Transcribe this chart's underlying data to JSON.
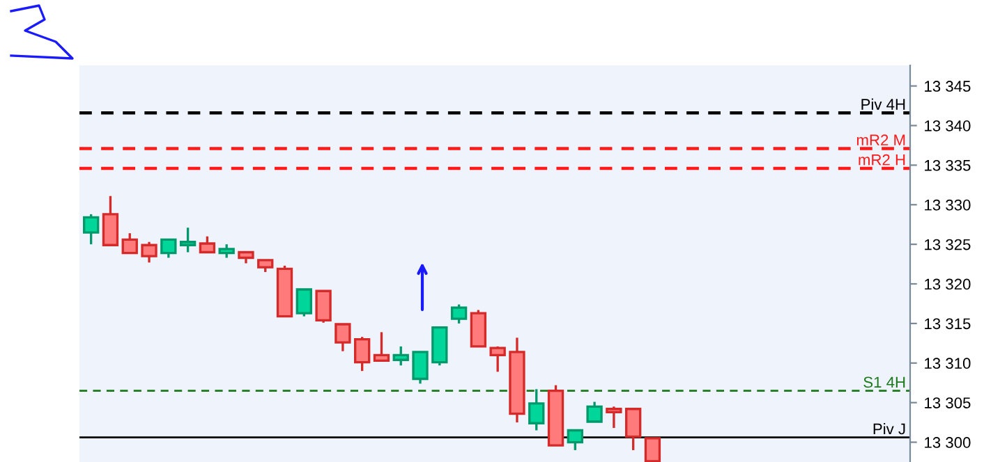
{
  "chart_data": {
    "type": "candlestick",
    "categories": [
      null,
      null,
      null,
      null,
      null,
      null,
      null,
      null,
      null,
      null,
      null,
      null,
      null,
      null,
      null,
      null,
      null,
      null,
      null,
      null,
      null,
      null,
      null,
      null,
      null,
      null,
      null,
      null,
      null,
      null,
      null,
      null,
      null,
      null,
      null,
      null,
      null,
      null,
      null,
      null,
      null,
      null,
      null
    ],
    "ohlc": [
      [
        13326.5,
        13328.8,
        13325.0,
        13328.4
      ],
      [
        13328.8,
        13331.1,
        13324.9,
        13324.9
      ],
      [
        13325.6,
        13326.4,
        13323.9,
        13323.9
      ],
      [
        13324.9,
        13325.3,
        13322.7,
        13323.5
      ],
      [
        13323.9,
        13325.6,
        13323.3,
        13325.6
      ],
      [
        13324.9,
        13327.1,
        13324.0,
        13325.3
      ],
      [
        13325.1,
        13326.0,
        13324.0,
        13324.0
      ],
      [
        13323.9,
        13325.0,
        13323.3,
        13324.4
      ],
      [
        13324.0,
        13324.0,
        13322.6,
        13323.3
      ],
      [
        13323.0,
        13323.0,
        13321.5,
        13322.1
      ],
      [
        13321.9,
        13322.3,
        13315.9,
        13315.9
      ],
      [
        13316.3,
        13319.3,
        13315.9,
        13319.3
      ],
      [
        13319.1,
        13319.1,
        13315.1,
        13315.4
      ],
      [
        13314.9,
        13314.9,
        13311.5,
        13312.6
      ],
      [
        13313.0,
        13313.3,
        13309.0,
        13310.1
      ],
      [
        13311.0,
        13313.9,
        13310.3,
        13310.3
      ],
      [
        13310.4,
        13312.1,
        13309.7,
        13311.0
      ],
      [
        13308.0,
        13311.4,
        13307.4,
        13311.4
      ],
      [
        13310.1,
        13314.5,
        13309.7,
        13314.5
      ],
      [
        13315.6,
        13317.4,
        13315.0,
        13317.0
      ],
      [
        13316.3,
        13316.7,
        13312.1,
        13312.1
      ],
      [
        13311.9,
        13312.1,
        13308.9,
        13311.0
      ],
      [
        13311.4,
        13313.2,
        13302.5,
        13303.6
      ],
      [
        13302.4,
        13306.7,
        13301.5,
        13304.9
      ],
      [
        13306.5,
        13307.2,
        13299.6,
        13299.6
      ],
      [
        13300.0,
        13301.5,
        13299.0,
        13301.5
      ],
      [
        13302.6,
        13305.1,
        13302.6,
        13304.5
      ],
      [
        13304.2,
        13304.5,
        13301.8,
        13303.8
      ],
      [
        13304.2,
        13304.2,
        13299.0,
        13300.7
      ],
      [
        13300.5,
        13300.5,
        13297.6,
        13297.6
      ],
      null,
      null,
      null,
      null,
      null,
      null,
      null,
      null,
      null,
      null,
      null,
      null,
      null
    ],
    "colors": [
      "#00d69a",
      "#ff7a7a",
      "#ff7a7a",
      "#ff7a7a",
      "#00d69a",
      "#00d69a",
      "#ff7a7a",
      "#00d69a",
      "#ff7a7a",
      "#ff7a7a",
      "#ff7a7a",
      "#00d69a",
      "#ff7a7a",
      "#ff7a7a",
      "#ff7a7a",
      "#ff7a7a",
      "#00d69a",
      "#00d69a",
      "#00d69a",
      "#00d69a",
      "#ff7a7a",
      "#ff7a7a",
      "#ff7a7a",
      "#00d69a",
      "#ff7a7a",
      "#00d69a",
      "#00d69a",
      "#ff7a7a",
      "#ff7a7a",
      "#ff7a7a",
      null,
      null,
      null,
      null,
      null,
      null,
      null,
      null,
      null,
      null,
      null,
      null,
      null
    ],
    "ylim": [
      13297.5,
      13347.6
    ],
    "yticks": [
      {
        "value": 13300,
        "label": "13 300"
      },
      {
        "value": 13305,
        "label": "13 305"
      },
      {
        "value": 13310,
        "label": "13 310"
      },
      {
        "value": 13315,
        "label": "13 315"
      },
      {
        "value": 13320,
        "label": "13 320"
      },
      {
        "value": 13325,
        "label": "13 325"
      },
      {
        "value": 13330,
        "label": "13 330"
      },
      {
        "value": 13335,
        "label": "13 335"
      },
      {
        "value": 13340,
        "label": "13 340"
      },
      {
        "value": 13345,
        "label": "13 345"
      }
    ],
    "tick_labels": "y",
    "grid": false,
    "legend": false,
    "ref_lines": [
      {
        "axis": "y",
        "value": 13341.6,
        "label": "Piv 4H",
        "color": "#000000",
        "line_style": "dashed"
      },
      {
        "axis": "y",
        "value": 13337.1,
        "label": "mR2 M",
        "color": "#ff1a1a",
        "line_style": "dashed"
      },
      {
        "axis": "y",
        "value": 13334.6,
        "label": "mR2 H",
        "color": "#ff1a1a",
        "line_style": "dashed"
      },
      {
        "axis": "y",
        "value": 13306.5,
        "label": "S1 4H",
        "color": "#1a7a1a",
        "line_style": "dashed"
      },
      {
        "axis": "y",
        "value": 13300.6,
        "label": "Piv J",
        "color": "#000000",
        "line_style": "solid"
      }
    ]
  }
}
